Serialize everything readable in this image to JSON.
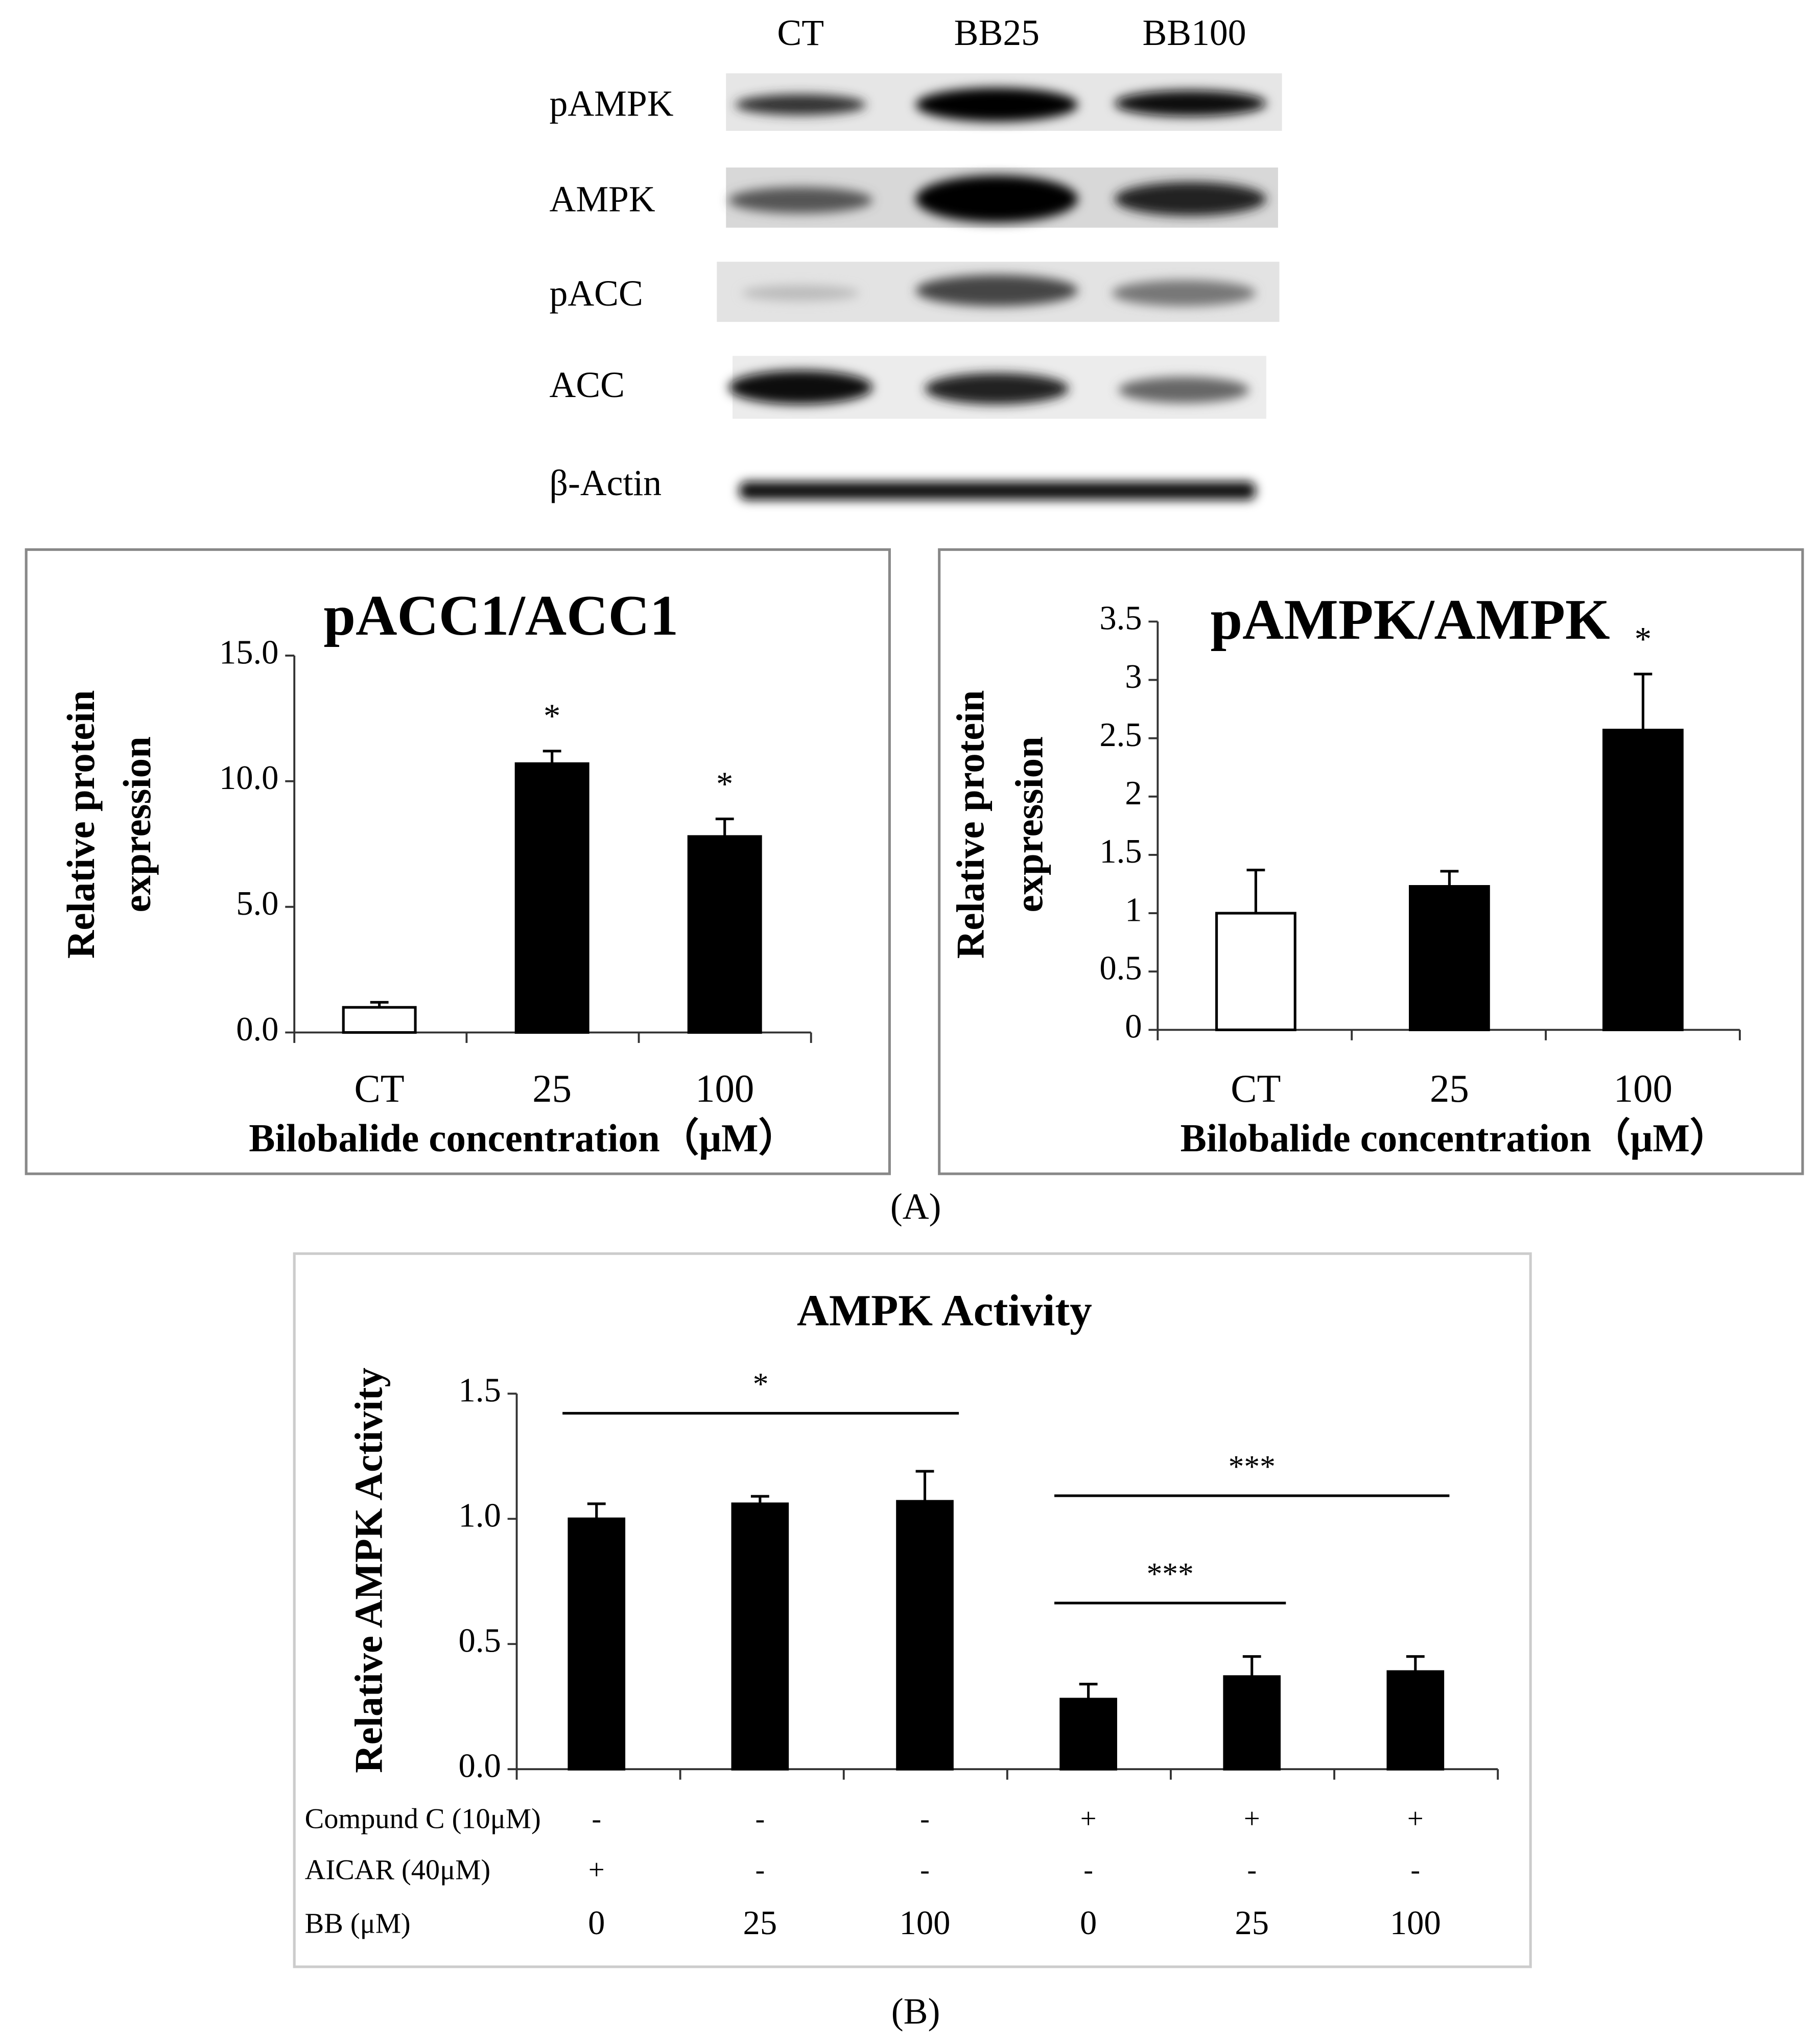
{
  "blot": {
    "lanes": [
      "CT",
      "BB25",
      "BB100"
    ],
    "proteins": [
      "pAMPK",
      "AMPK",
      "pACC",
      "ACC",
      "β-Actin"
    ]
  },
  "panel_labels": [
    "(A)",
    "(B)"
  ],
  "chart_data": [
    {
      "type": "bar",
      "title": "pACC1/ACC1",
      "ylabel": [
        "Relative protein",
        "expression"
      ],
      "xlabel": "Bilobalide concentration（μM）",
      "categories": [
        "CT",
        "25",
        "100"
      ],
      "values": [
        1.0,
        10.7,
        7.8
      ],
      "errors": [
        0.2,
        0.5,
        0.7
      ],
      "colors": [
        "#ffffff",
        "#000000",
        "#000000"
      ],
      "significance": [
        null,
        "*",
        "*"
      ],
      "ylim": [
        0,
        15
      ],
      "yticks": [
        {
          "value": 0,
          "label": "0.0"
        },
        {
          "value": 5,
          "label": "5.0"
        },
        {
          "value": 10,
          "label": "10.0"
        },
        {
          "value": 15,
          "label": "15.0"
        }
      ]
    },
    {
      "type": "bar",
      "title": "pAMPK/AMPK",
      "ylabel": [
        "Relative protein",
        "expression"
      ],
      "xlabel": "Bilobalide concentration（μM）",
      "categories": [
        "CT",
        "25",
        "100"
      ],
      "values": [
        1.0,
        1.23,
        2.57
      ],
      "errors": [
        0.37,
        0.13,
        0.48
      ],
      "colors": [
        "#ffffff",
        "#000000",
        "#000000"
      ],
      "significance": [
        null,
        null,
        "*"
      ],
      "ylim": [
        0,
        3.5
      ],
      "yticks": [
        0,
        0.5,
        1,
        1.5,
        2,
        2.5,
        3,
        3.5
      ]
    },
    {
      "type": "bar",
      "title": "AMPK Activity",
      "ylabel": [
        "Relative AMPK Activity"
      ],
      "values": [
        1.0,
        1.06,
        1.07,
        0.28,
        0.37,
        0.39
      ],
      "errors": [
        0.06,
        0.03,
        0.12,
        0.06,
        0.08,
        0.06
      ],
      "colors": [
        "#000000",
        "#000000",
        "#000000",
        "#000000",
        "#000000",
        "#000000"
      ],
      "conditions": [
        {
          "name": "Compund C (10μM)",
          "values": [
            "-",
            "-",
            "-",
            "+",
            "+",
            "+"
          ]
        },
        {
          "name": "AICAR (40μM)",
          "values": [
            "+",
            "-",
            "-",
            "-",
            "-",
            "-"
          ]
        },
        {
          "name": "BB (μM)",
          "values": [
            "0",
            "25",
            "100",
            "0",
            "25",
            "100"
          ]
        }
      ],
      "brackets": [
        {
          "from": 0,
          "to": 2,
          "label": "*"
        },
        {
          "from": 3,
          "to": 4,
          "label": "***"
        },
        {
          "from": 3,
          "to": 5,
          "label": "***"
        }
      ],
      "ylim": [
        0,
        1.5
      ],
      "yticks": [
        {
          "value": 0,
          "label": "0.0"
        },
        {
          "value": 0.5,
          "label": "0.5"
        },
        {
          "value": 1,
          "label": "1.0"
        },
        {
          "value": 1.5,
          "label": "1.5"
        }
      ]
    }
  ]
}
